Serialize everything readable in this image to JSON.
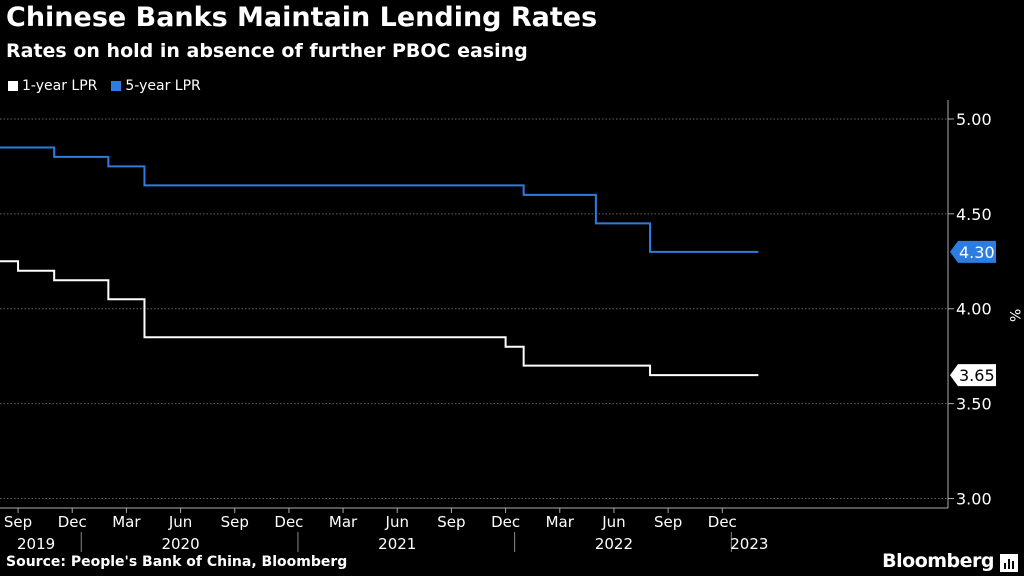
{
  "title": "Chinese Banks Maintain Lending Rates",
  "subtitle": "Rates on hold in absence of further PBOC easing",
  "source": "Source: People's Bank of China, Bloomberg",
  "brand": "Bloomberg",
  "colors": {
    "background": "#000000",
    "series_1y": "#ffffff",
    "series_5y": "#2d7de0",
    "grid": "#666666"
  },
  "chart_data": {
    "type": "line",
    "title": "Chinese Banks Maintain Lending Rates",
    "subtitle": "Rates on hold in absence of further PBOC easing",
    "xlabel": "",
    "ylabel": "%",
    "xlim": [
      0,
      52.5
    ],
    "ylim": [
      2.95,
      5.1
    ],
    "y_ticks": [
      3.0,
      3.5,
      4.0,
      4.5,
      5.0
    ],
    "y_tick_labels": [
      "3.00",
      "3.50",
      "4.00",
      "4.50",
      "5.00"
    ],
    "x_ticks": [
      {
        "x": 1,
        "label": "Sep"
      },
      {
        "x": 4,
        "label": "Dec"
      },
      {
        "x": 7,
        "label": "Mar"
      },
      {
        "x": 10,
        "label": "Jun"
      },
      {
        "x": 13,
        "label": "Sep"
      },
      {
        "x": 16,
        "label": "Dec"
      },
      {
        "x": 19,
        "label": "Mar"
      },
      {
        "x": 22,
        "label": "Jun"
      },
      {
        "x": 25,
        "label": "Sep"
      },
      {
        "x": 28,
        "label": "Dec"
      },
      {
        "x": 31,
        "label": "Mar"
      },
      {
        "x": 34,
        "label": "Jun"
      },
      {
        "x": 37,
        "label": "Sep"
      },
      {
        "x": 40,
        "label": "Dec"
      }
    ],
    "year_labels": [
      {
        "x": 2,
        "label": "2019"
      },
      {
        "x": 10,
        "label": "2020"
      },
      {
        "x": 22,
        "label": "2021"
      },
      {
        "x": 34,
        "label": "2022"
      },
      {
        "x": 41.5,
        "label": "2023"
      }
    ],
    "year_separators": [
      4.5,
      16.5,
      28.5,
      40.5
    ],
    "legend": [
      "1-year LPR",
      "5-year LPR"
    ],
    "grid": true,
    "series": [
      {
        "name": "1-year LPR",
        "color": "#ffffff",
        "x": [
          0,
          1,
          2,
          3,
          4,
          5,
          6,
          7,
          8,
          9,
          10,
          11,
          12,
          13,
          14,
          15,
          16,
          17,
          18,
          19,
          20,
          21,
          22,
          23,
          24,
          25,
          26,
          27,
          28,
          29,
          30,
          31,
          32,
          33,
          34,
          35,
          36,
          37,
          38,
          39,
          40,
          41,
          42
        ],
        "values": [
          4.25,
          4.2,
          4.2,
          4.15,
          4.15,
          4.15,
          4.05,
          4.05,
          3.85,
          3.85,
          3.85,
          3.85,
          3.85,
          3.85,
          3.85,
          3.85,
          3.85,
          3.85,
          3.85,
          3.85,
          3.85,
          3.85,
          3.85,
          3.85,
          3.85,
          3.85,
          3.85,
          3.85,
          3.8,
          3.7,
          3.7,
          3.7,
          3.7,
          3.7,
          3.7,
          3.7,
          3.65,
          3.65,
          3.65,
          3.65,
          3.65,
          3.65,
          3.65
        ]
      },
      {
        "name": "5-year LPR",
        "color": "#2d7de0",
        "x": [
          0,
          1,
          2,
          3,
          4,
          5,
          6,
          7,
          8,
          9,
          10,
          11,
          12,
          13,
          14,
          15,
          16,
          17,
          18,
          19,
          20,
          21,
          22,
          23,
          24,
          25,
          26,
          27,
          28,
          29,
          30,
          31,
          32,
          33,
          34,
          35,
          36,
          37,
          38,
          39,
          40,
          41,
          42
        ],
        "values": [
          4.85,
          4.85,
          4.85,
          4.8,
          4.8,
          4.8,
          4.75,
          4.75,
          4.65,
          4.65,
          4.65,
          4.65,
          4.65,
          4.65,
          4.65,
          4.65,
          4.65,
          4.65,
          4.65,
          4.65,
          4.65,
          4.65,
          4.65,
          4.65,
          4.65,
          4.65,
          4.65,
          4.65,
          4.65,
          4.6,
          4.6,
          4.6,
          4.6,
          4.45,
          4.45,
          4.45,
          4.3,
          4.3,
          4.3,
          4.3,
          4.3,
          4.3,
          4.3
        ]
      }
    ],
    "end_labels": [
      {
        "series": "5-year LPR",
        "text": "4.30",
        "value": 4.3
      },
      {
        "series": "1-year LPR",
        "text": "3.65",
        "value": 3.65
      }
    ]
  }
}
